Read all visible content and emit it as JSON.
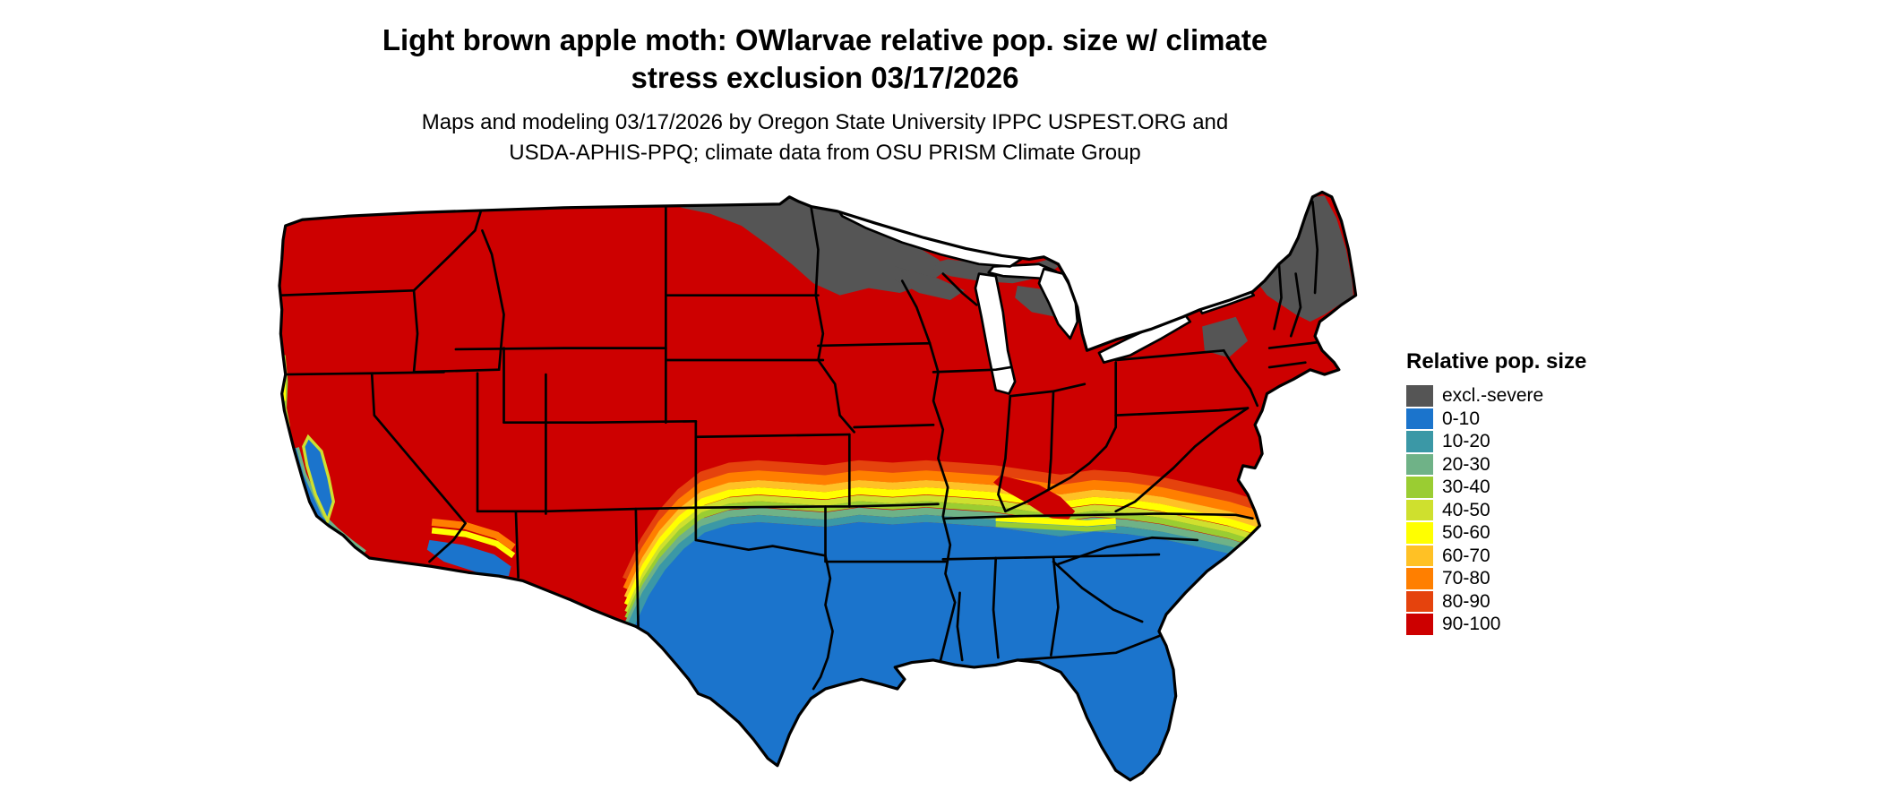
{
  "title": {
    "line1": "Light brown apple moth: OWlarvae relative pop. size w/ climate",
    "line2": "stress exclusion 03/17/2026"
  },
  "subtitle": {
    "line1": "Maps and modeling 03/17/2026 by Oregon State University IPPC USPEST.ORG and",
    "line2": "USDA-APHIS-PPQ; climate data from OSU PRISM Climate Group"
  },
  "legend": {
    "title": "Relative pop. size",
    "items": [
      {
        "label": "excl.-severe",
        "color": "#555555"
      },
      {
        "label": "0-10",
        "color": "#1b74cc"
      },
      {
        "label": "10-20",
        "color": "#3b98a6"
      },
      {
        "label": "20-30",
        "color": "#6fb287"
      },
      {
        "label": "30-40",
        "color": "#9acd32"
      },
      {
        "label": "40-50",
        "color": "#cfe02e"
      },
      {
        "label": "50-60",
        "color": "#ffff00"
      },
      {
        "label": "60-70",
        "color": "#ffc125"
      },
      {
        "label": "70-80",
        "color": "#ff7f00"
      },
      {
        "label": "80-90",
        "color": "#e5430d"
      },
      {
        "label": "90-100",
        "color": "#cd0000"
      }
    ]
  },
  "map": {
    "region": "Contiguous United States",
    "water_color": "#ffffff",
    "boundary_color": "#000000"
  }
}
